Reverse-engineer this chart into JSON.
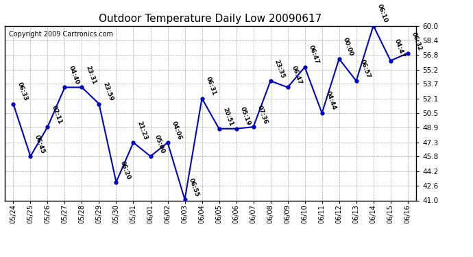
{
  "title": "Outdoor Temperature Daily Low 20090617",
  "copyright": "Copyright 2009 Cartronics.com",
  "x_labels": [
    "05/24",
    "05/25",
    "05/26",
    "05/27",
    "05/28",
    "05/29",
    "05/30",
    "05/31",
    "06/01",
    "06/02",
    "06/03",
    "06/04",
    "06/05",
    "06/06",
    "06/07",
    "06/08",
    "06/09",
    "06/10",
    "06/11",
    "06/12",
    "06/13",
    "06/14",
    "06/15",
    "06/16"
  ],
  "y_values": [
    51.5,
    45.8,
    49.0,
    53.3,
    53.3,
    51.5,
    43.0,
    47.3,
    45.8,
    47.3,
    41.1,
    52.1,
    48.8,
    48.8,
    49.0,
    54.0,
    53.3,
    55.5,
    50.5,
    56.4,
    54.0,
    60.0,
    56.2,
    57.0
  ],
  "point_labels": [
    "06:33",
    "06:45",
    "02:11",
    "04:40",
    "23:31",
    "23:59",
    "06:20",
    "21:23",
    "05:00",
    "04:06",
    "06:55",
    "06:31",
    "20:51",
    "05:19",
    "07:36",
    "23:35",
    "06:47",
    "06:47",
    "04:44",
    "00:00",
    "06:57",
    "06:10",
    "04:47",
    "06:32"
  ],
  "y_min": 41.0,
  "y_max": 60.0,
  "y_ticks": [
    41.0,
    42.6,
    44.2,
    45.8,
    47.3,
    48.9,
    50.5,
    52.1,
    53.7,
    55.2,
    56.8,
    58.4,
    60.0
  ],
  "line_color": "#0000cc",
  "marker_color": "#0000cc",
  "bg_color": "#ffffff",
  "grid_color": "#aaaaaa",
  "title_fontsize": 11,
  "label_fontsize": 6.5,
  "copyright_fontsize": 7,
  "xtick_fontsize": 7,
  "ytick_fontsize": 7.5
}
